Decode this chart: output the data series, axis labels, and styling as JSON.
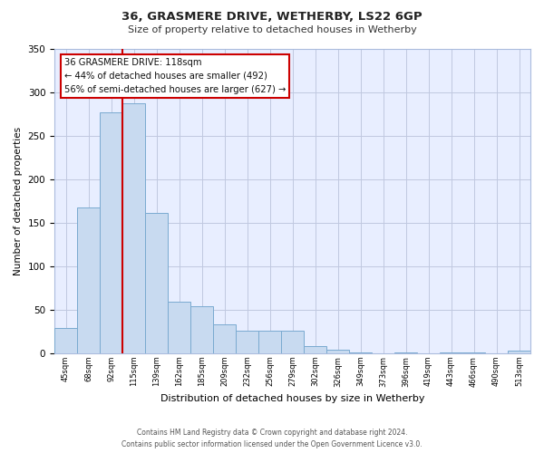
{
  "title": "36, GRASMERE DRIVE, WETHERBY, LS22 6GP",
  "subtitle": "Size of property relative to detached houses in Wetherby",
  "xlabel": "Distribution of detached houses by size in Wetherby",
  "ylabel": "Number of detached properties",
  "bin_labels": [
    "45sqm",
    "68sqm",
    "92sqm",
    "115sqm",
    "139sqm",
    "162sqm",
    "185sqm",
    "209sqm",
    "232sqm",
    "256sqm",
    "279sqm",
    "302sqm",
    "326sqm",
    "349sqm",
    "373sqm",
    "396sqm",
    "419sqm",
    "443sqm",
    "466sqm",
    "490sqm",
    "513sqm"
  ],
  "bar_values": [
    29,
    168,
    277,
    288,
    161,
    59,
    54,
    33,
    26,
    26,
    26,
    8,
    4,
    1,
    0,
    1,
    0,
    1,
    1,
    0,
    3
  ],
  "bar_color": "#c8daf0",
  "bar_edge_color": "#7aaad0",
  "bg_color": "#ffffff",
  "plot_bg_color": "#e8eeff",
  "ylim": [
    0,
    350
  ],
  "yticks": [
    0,
    50,
    100,
    150,
    200,
    250,
    300,
    350
  ],
  "annotation_line1": "36 GRASMERE DRIVE: 118sqm",
  "annotation_line2": "← 44% of detached houses are smaller (492)",
  "annotation_line3": "56% of semi-detached houses are larger (627) →",
  "annotation_box_color": "#ffffff",
  "annotation_box_edge_color": "#cc0000",
  "vline_color": "#cc0000",
  "vline_x": 3,
  "footer_line1": "Contains HM Land Registry data © Crown copyright and database right 2024.",
  "footer_line2": "Contains public sector information licensed under the Open Government Licence v3.0."
}
